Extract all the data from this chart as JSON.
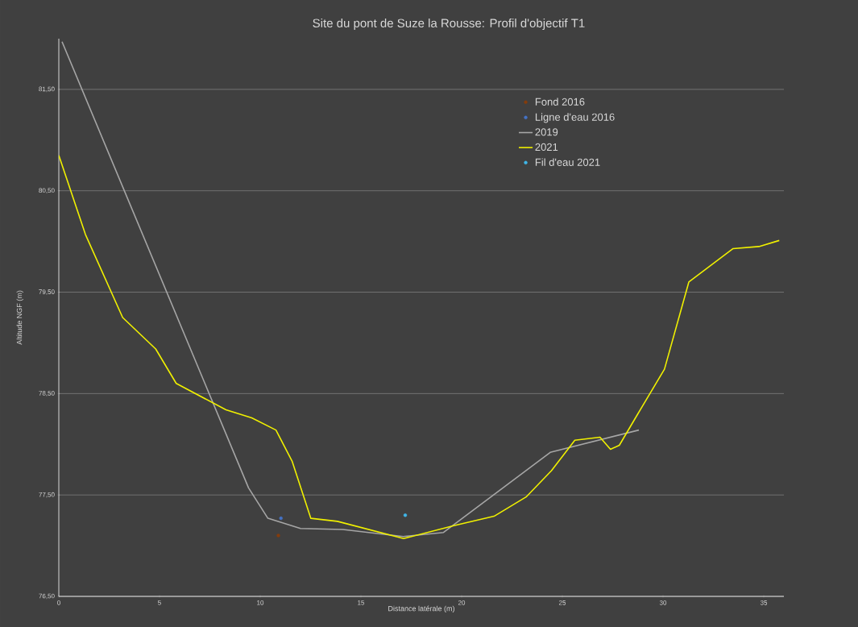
{
  "chart_data": {
    "type": "line",
    "title": "Site du pont de Suze la Rousse: Profil d'objectif T1",
    "xlabel": "Distance latérale (m)",
    "ylabel": "Altitude NGF (m)",
    "xlim": [
      0,
      36
    ],
    "ylim": [
      76.5,
      82
    ],
    "xticks": [
      0,
      5,
      10,
      15,
      20,
      25,
      30,
      35
    ],
    "yticks": [
      {
        "value": 76.5,
        "label": "76,50"
      },
      {
        "value": 77.5,
        "label": "77,50"
      },
      {
        "value": 78.5,
        "label": "78,50"
      },
      {
        "value": 79.5,
        "label": "79,50"
      },
      {
        "value": 80.5,
        "label": "80,50"
      },
      {
        "value": 81.5,
        "label": "81,50"
      }
    ],
    "grid": "y",
    "legend": "top right",
    "series": [
      {
        "name": "Fond 2016",
        "type": "scatter",
        "marker": "circle",
        "color": "#843c0c",
        "x": [
          10.9
        ],
        "values": [
          77.1
        ]
      },
      {
        "name": "Ligne d'eau 2016",
        "type": "scatter",
        "marker": "circle",
        "color": "#4472c4",
        "x": [
          11.03
        ],
        "values": [
          77.27
        ]
      },
      {
        "name": "2019",
        "marker": "none",
        "color": "#a6a6a6",
        "x": [
          0.16,
          9.42,
          10.38,
          12.0,
          14.1,
          17.1,
          19.1,
          24.4,
          28.8
        ],
        "values": [
          81.97,
          77.57,
          77.27,
          77.17,
          77.16,
          77.09,
          77.13,
          77.92,
          78.14
        ]
      },
      {
        "name": "2021",
        "marker": "none",
        "color": "#f0f000",
        "x": [
          0,
          1.32,
          3.17,
          4.81,
          5.83,
          8.3,
          9.58,
          10.78,
          11.59,
          12.51,
          13.83,
          17.12,
          19.65,
          21.61,
          23.2,
          24.46,
          25.62,
          26.87,
          27.39,
          27.83,
          28.75,
          30.07,
          31.28,
          33.48,
          34.76,
          35.77
        ],
        "values": [
          80.85,
          80.07,
          79.25,
          78.94,
          78.6,
          78.34,
          78.26,
          78.14,
          77.83,
          77.27,
          77.24,
          77.07,
          77.2,
          77.29,
          77.48,
          77.74,
          78.04,
          78.07,
          77.95,
          77.99,
          78.3,
          78.74,
          79.6,
          79.93,
          79.95,
          80.01
        ]
      },
      {
        "name": "Fil d'eau 2021",
        "type": "scatter",
        "marker": "circle",
        "color": "#3fb6e8",
        "x": [
          17.2
        ],
        "values": [
          77.3
        ]
      }
    ]
  }
}
